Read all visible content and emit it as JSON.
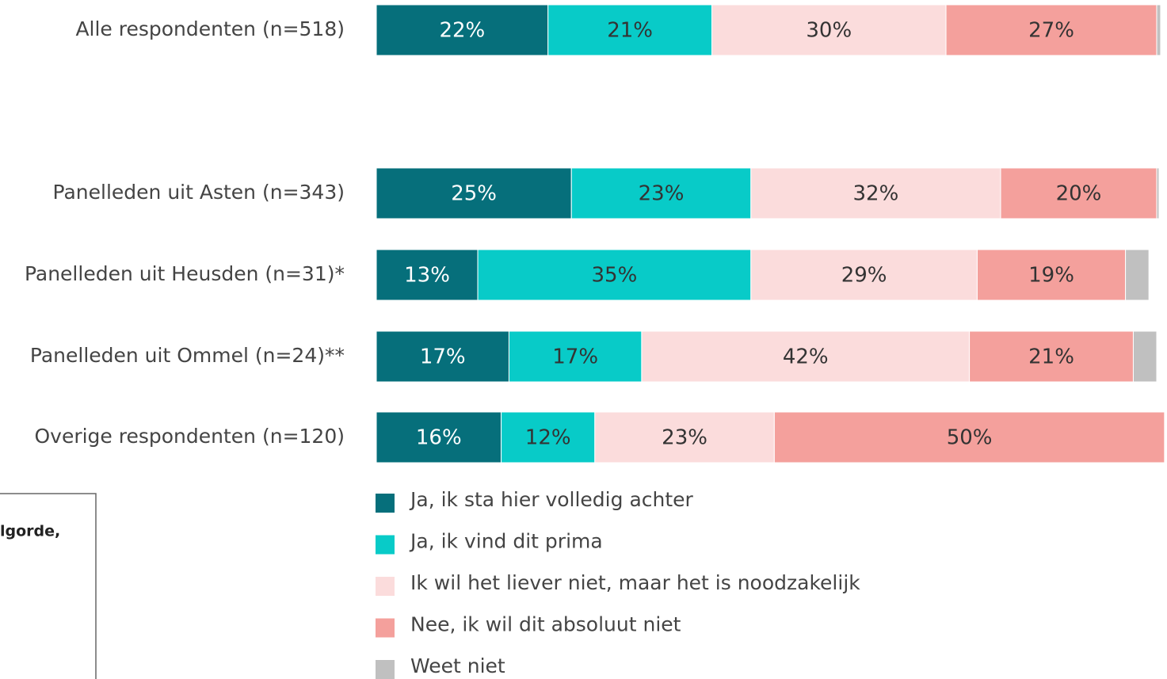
{
  "chart_data": {
    "type": "stacked_barh",
    "categories": [
      "Alle respondenten (n=518)",
      "Panelleden uit Asten (n=343)",
      "Panelleden uit Heusden (n=31)*",
      "Panelleden uit Ommel (n=24)**",
      "Overige respondenten (n=120)"
    ],
    "series": [
      {
        "name": "Ja, ik sta hier volledig achter",
        "color": "#066f7b",
        "values": [
          22,
          25,
          13,
          17,
          16
        ],
        "value_labels": [
          "22%",
          "25%",
          "13%",
          "17%",
          "16%"
        ]
      },
      {
        "name": "Ja, ik vind dit prima",
        "color": "#08cbc8",
        "values": [
          21,
          23,
          35,
          17,
          12
        ],
        "value_labels": [
          "21%",
          "23%",
          "35%",
          "17%",
          "12%"
        ]
      },
      {
        "name": "Ik wil het liever niet, maar het is noodzakelijk",
        "color": "#fbdcdc",
        "values": [
          30,
          32,
          29,
          42,
          23
        ],
        "value_labels": [
          "30%",
          "32%",
          "29%",
          "42%",
          "23%"
        ]
      },
      {
        "name": "Nee, ik wil dit absoluut niet",
        "color": "#f4a09c",
        "values": [
          27,
          20,
          19,
          21,
          50
        ],
        "value_labels": [
          "27%",
          "20%",
          "19%",
          "21%",
          "50%"
        ]
      },
      {
        "name": "Weet niet",
        "color": "#c0c0c0",
        "values": [
          0.5,
          0.3,
          3,
          3,
          0
        ]
      }
    ],
    "xlim": [
      0,
      100
    ],
    "note": "lgorde,"
  }
}
